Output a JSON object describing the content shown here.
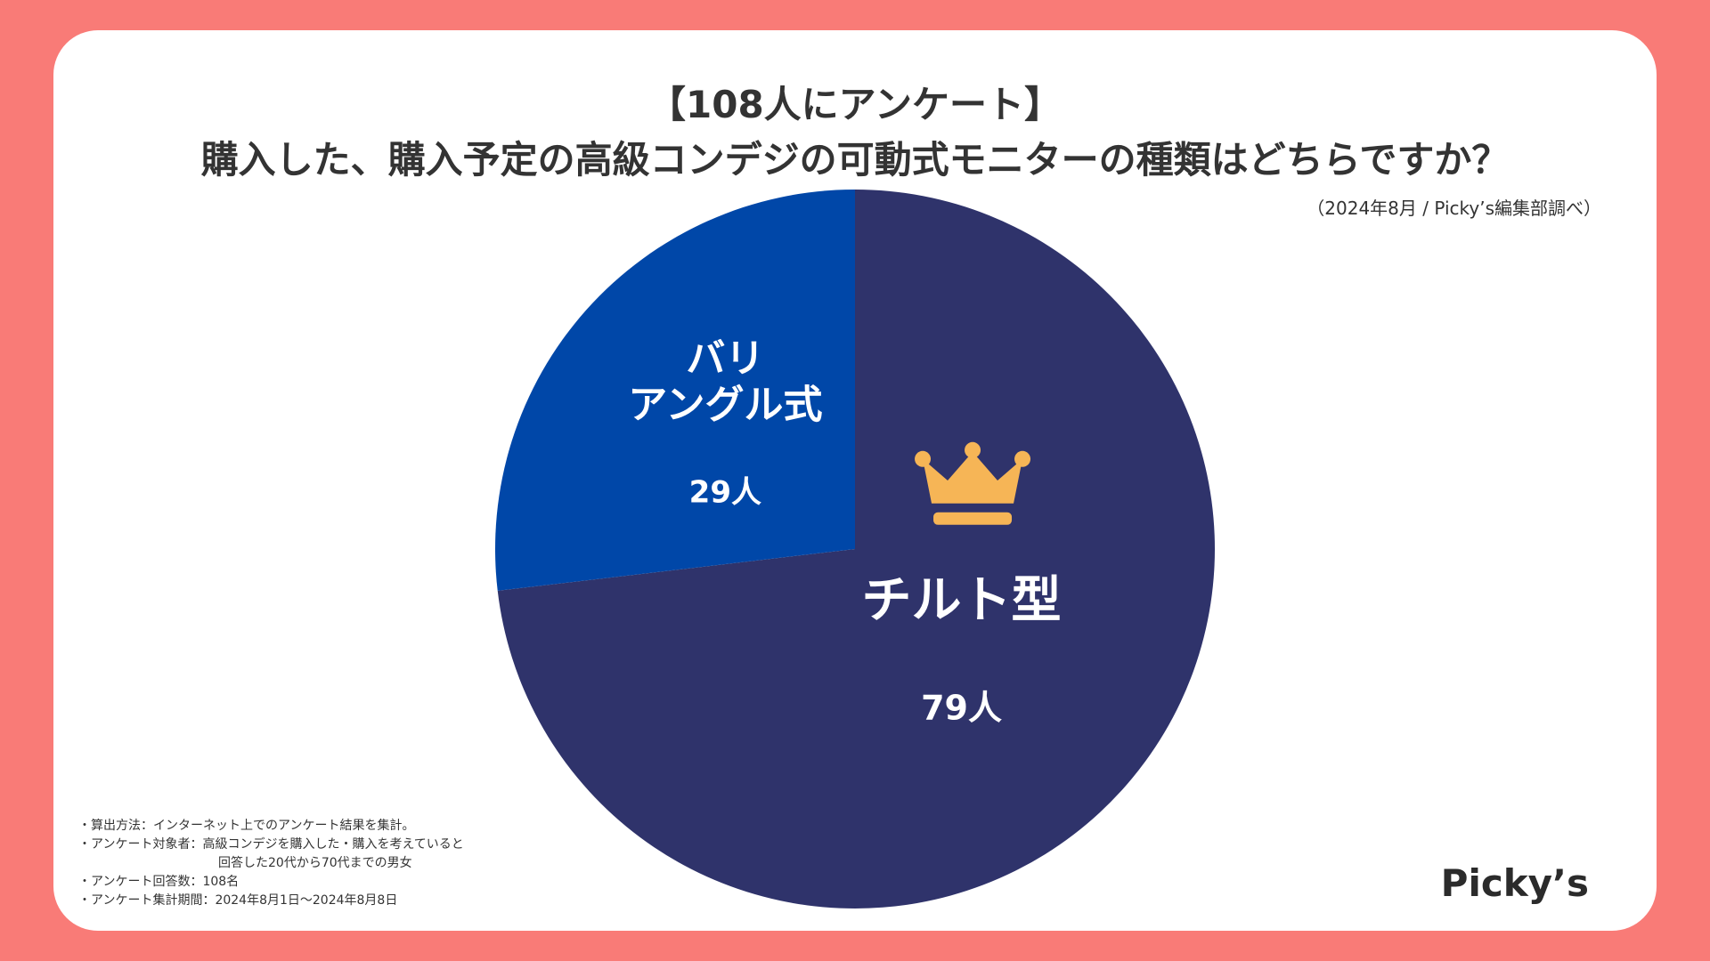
{
  "header": {
    "title_line1": "【108人にアンケート】",
    "title_line2": "購入した、購入予定の高級コンデジの可動式モニターの種類はどちらですか？",
    "source": "（2024年8月 / Picky’s編集部調べ）"
  },
  "chart_data": {
    "type": "pie",
    "title": "購入した、購入予定の高級コンデジの可動式モニターの種類はどちらですか？",
    "total_respondents": 108,
    "unit": "人",
    "slices": [
      {
        "label_lines": [
          "チルト型"
        ],
        "value": 79,
        "value_label": "79人",
        "color": "#2f336b",
        "winner": true
      },
      {
        "label_lines": [
          "バリ",
          "アングル式"
        ],
        "value": 29,
        "value_label": "29人",
        "color": "#0047a8",
        "winner": false
      }
    ],
    "winner_icon": "crown-icon",
    "winner_icon_color": "#f6b556"
  },
  "notes": {
    "line1": "・算出方法：インターネット上でのアンケート結果を集計。",
    "line2": "・アンケート対象者：高級コンデジを購入した・購入を考えていると",
    "line3": "回答した20代から70代までの男女",
    "line4": "・アンケート回答数：108名",
    "line5": "・アンケート集計期間：2024年8月1日〜2024年8月8日"
  },
  "brand": {
    "logo_text": "Picky’s",
    "background_color": "#f97b77"
  }
}
